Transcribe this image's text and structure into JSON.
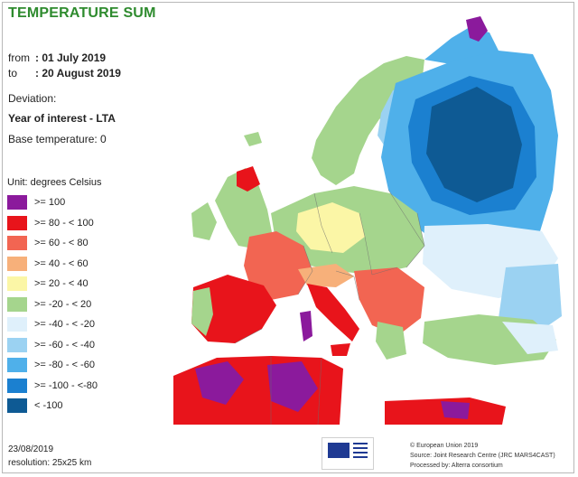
{
  "title": "TEMPERATURE SUM",
  "period": {
    "from_label": "from",
    "from_value": ": 01 July 2019",
    "to_label": "to",
    "to_value": ": 20 August 2019"
  },
  "deviation_label": "Deviation:",
  "year_of_interest": "Year of interest - LTA",
  "base_temperature": "Base temperature: 0",
  "legend": {
    "unit": "Unit: degrees Celsius",
    "items": [
      {
        "label": ">= 100",
        "color": "#8b1a9c"
      },
      {
        "label": ">= 80 - < 100",
        "color": "#e8141b"
      },
      {
        "label": ">= 60 - < 80",
        "color": "#f26552"
      },
      {
        "label": ">= 40 - < 60",
        "color": "#f7b07a"
      },
      {
        "label": ">= 20 - < 40",
        "color": "#fbf6a6"
      },
      {
        "label": ">= -20 - < 20",
        "color": "#a5d58d"
      },
      {
        "label": ">= -40 - < -20",
        "color": "#dff0fb"
      },
      {
        "label": ">= -60 - < -40",
        "color": "#9bd2f2"
      },
      {
        "label": ">= -80 - < -60",
        "color": "#4fb0ea"
      },
      {
        "label": ">= -100 - <-80",
        "color": "#1b80d0"
      },
      {
        "label": "< -100",
        "color": "#0e5a94"
      }
    ]
  },
  "footer": {
    "date": "23/08/2019",
    "resolution": "resolution: 25x25 km",
    "copyright": "© European Union 2019",
    "source": "Source: Joint Research Centre (JRC MARS4CAST)",
    "processed": "Processed by: Alterra consortium"
  },
  "map": {
    "sea_color": "#ffffff",
    "border_color": "#6d6d6d"
  }
}
